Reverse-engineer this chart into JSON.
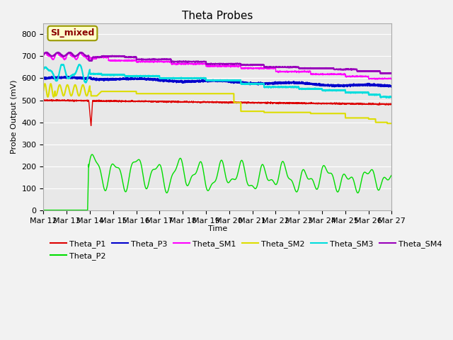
{
  "title": "Theta Probes",
  "xlabel": "Time",
  "ylabel": "Probe Output (mV)",
  "ylim": [
    0,
    850
  ],
  "colors": {
    "Theta_P1": "#dd0000",
    "Theta_P2": "#00dd00",
    "Theta_P3": "#0000cc",
    "Theta_SM1": "#ff00ff",
    "Theta_SM2": "#dddd00",
    "Theta_SM3": "#00dddd",
    "Theta_SM4": "#9900bb"
  },
  "x_tick_labels": [
    "Mar 12",
    "Mar 13",
    "Mar 14",
    "Mar 15",
    "Mar 16",
    "Mar 17",
    "Mar 18",
    "Mar 19",
    "Mar 20",
    "Mar 21",
    "Mar 22",
    "Mar 23",
    "Mar 24",
    "Mar 25",
    "Mar 26",
    "Mar 27"
  ],
  "annotation": "SI_mixed",
  "background_color": "#e8e8e8",
  "fig_background": "#f2f2f2",
  "yticks": [
    0,
    100,
    200,
    300,
    400,
    500,
    600,
    700,
    800
  ]
}
